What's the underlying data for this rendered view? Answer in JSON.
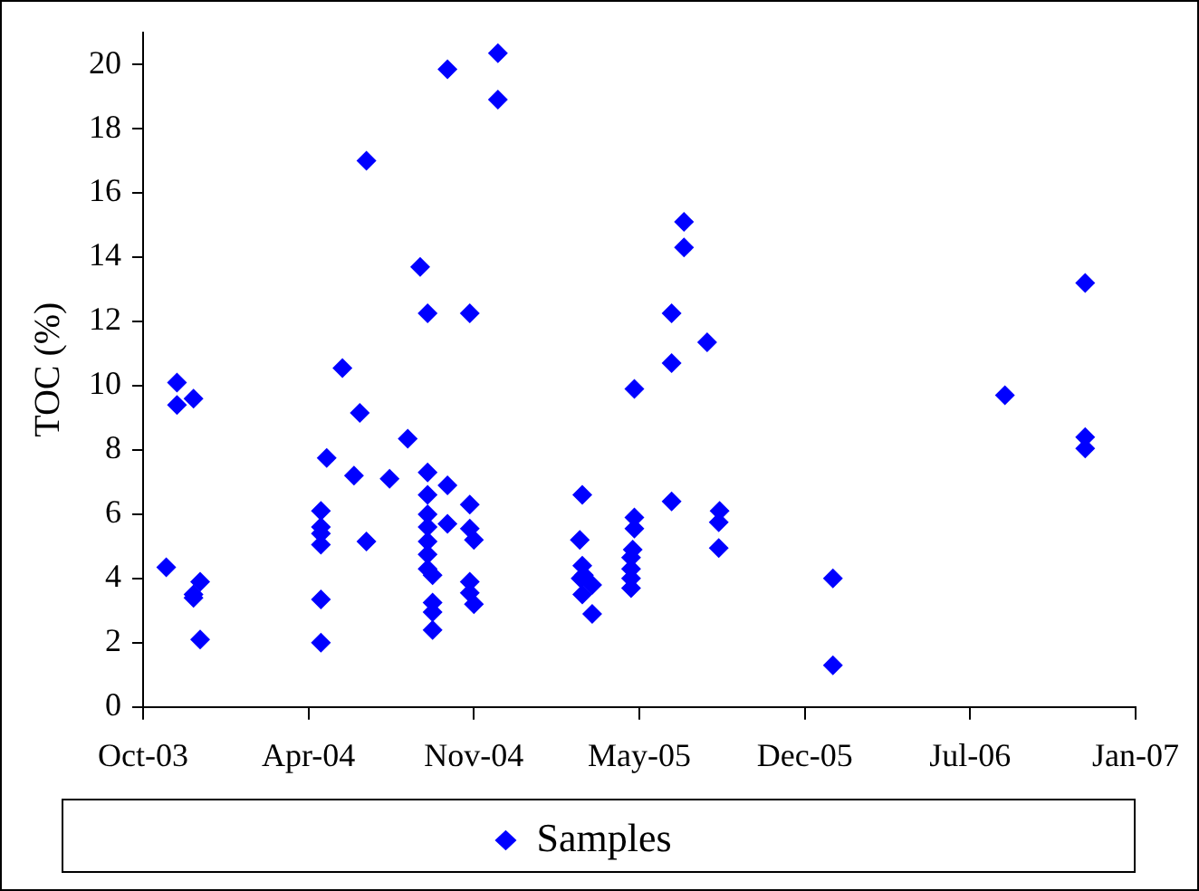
{
  "chart_data": {
    "type": "scatter",
    "ylabel": "TOC (%)",
    "marker": "diamond",
    "legend": "bottom",
    "grid": false,
    "xlim": [
      "2003-10-06",
      "2007-01-18"
    ],
    "xticks": [
      {
        "value": "2003-10-06",
        "label": "Oct-03"
      },
      {
        "value": "2004-04-23",
        "label": "Apr-04"
      },
      {
        "value": "2004-11-09",
        "label": "Nov-04"
      },
      {
        "value": "2005-05-28",
        "label": "May-05"
      },
      {
        "value": "2005-12-14",
        "label": "Dec-05"
      },
      {
        "value": "2006-07-02",
        "label": "Jul-06"
      },
      {
        "value": "2007-01-18",
        "label": "Jan-07"
      }
    ],
    "ylim": [
      0,
      21
    ],
    "yticks": [
      0,
      2,
      4,
      6,
      8,
      10,
      12,
      14,
      16,
      18,
      20
    ],
    "series": [
      {
        "name": "Samples",
        "color": "#0000ff",
        "x": [
          "2003-11-03",
          "2003-11-16",
          "2003-11-16",
          "2003-12-06",
          "2003-12-14",
          "2003-12-06",
          "2003-12-06",
          "2003-12-14",
          "2004-05-08",
          "2004-05-08",
          "2004-05-08",
          "2004-05-08",
          "2004-05-08",
          "2004-05-08",
          "2004-05-15",
          "2004-06-03",
          "2004-06-24",
          "2004-06-17",
          "2004-07-02",
          "2004-07-02",
          "2004-07-30",
          "2004-08-21",
          "2004-09-05",
          "2004-09-14",
          "2004-11-04",
          "2004-10-08",
          "2004-09-14",
          "2004-09-14",
          "2004-09-14",
          "2004-09-14",
          "2004-09-14",
          "2004-09-14",
          "2004-09-14",
          "2004-09-20",
          "2004-09-20",
          "2004-09-20",
          "2004-09-20",
          "2004-10-08",
          "2004-10-08",
          "2004-11-04",
          "2004-11-04",
          "2004-11-09",
          "2004-11-04",
          "2004-11-04",
          "2004-11-09",
          "2004-12-08",
          "2004-12-08",
          "2005-03-20",
          "2005-03-17",
          "2005-03-20",
          "2005-03-18",
          "2005-03-22",
          "2005-04-01",
          "2005-03-20",
          "2005-04-01",
          "2005-05-22",
          "2005-05-22",
          "2005-05-22",
          "2005-05-20",
          "2005-05-18",
          "2005-05-18",
          "2005-05-18",
          "2005-05-18",
          "2005-07-06",
          "2005-07-06",
          "2005-07-06",
          "2005-07-21",
          "2005-07-21",
          "2005-08-18",
          "2005-09-02",
          "2005-09-01",
          "2005-09-01",
          "2006-01-17",
          "2006-01-17",
          "2006-08-13",
          "2006-11-18",
          "2006-11-18",
          "2006-11-18"
        ],
        "values": [
          4.35,
          10.1,
          9.4,
          9.6,
          3.9,
          3.5,
          3.4,
          2.1,
          6.1,
          5.6,
          5.4,
          5.05,
          3.35,
          2.0,
          7.75,
          10.55,
          9.15,
          7.2,
          17.0,
          5.15,
          7.1,
          8.35,
          13.7,
          12.25,
          12.25,
          19.85,
          7.3,
          6.6,
          6.0,
          5.6,
          5.15,
          4.75,
          4.3,
          4.1,
          3.25,
          2.95,
          2.4,
          6.9,
          5.7,
          6.3,
          5.55,
          5.2,
          3.9,
          3.55,
          3.2,
          20.35,
          18.9,
          6.6,
          5.2,
          4.4,
          4.0,
          4.1,
          3.8,
          3.5,
          2.9,
          9.9,
          5.9,
          5.55,
          4.9,
          4.65,
          4.3,
          4.0,
          3.7,
          12.25,
          10.7,
          6.4,
          15.1,
          14.3,
          11.35,
          6.1,
          5.75,
          4.95,
          4.0,
          1.3,
          9.7,
          13.2,
          8.4,
          8.05
        ]
      }
    ]
  }
}
